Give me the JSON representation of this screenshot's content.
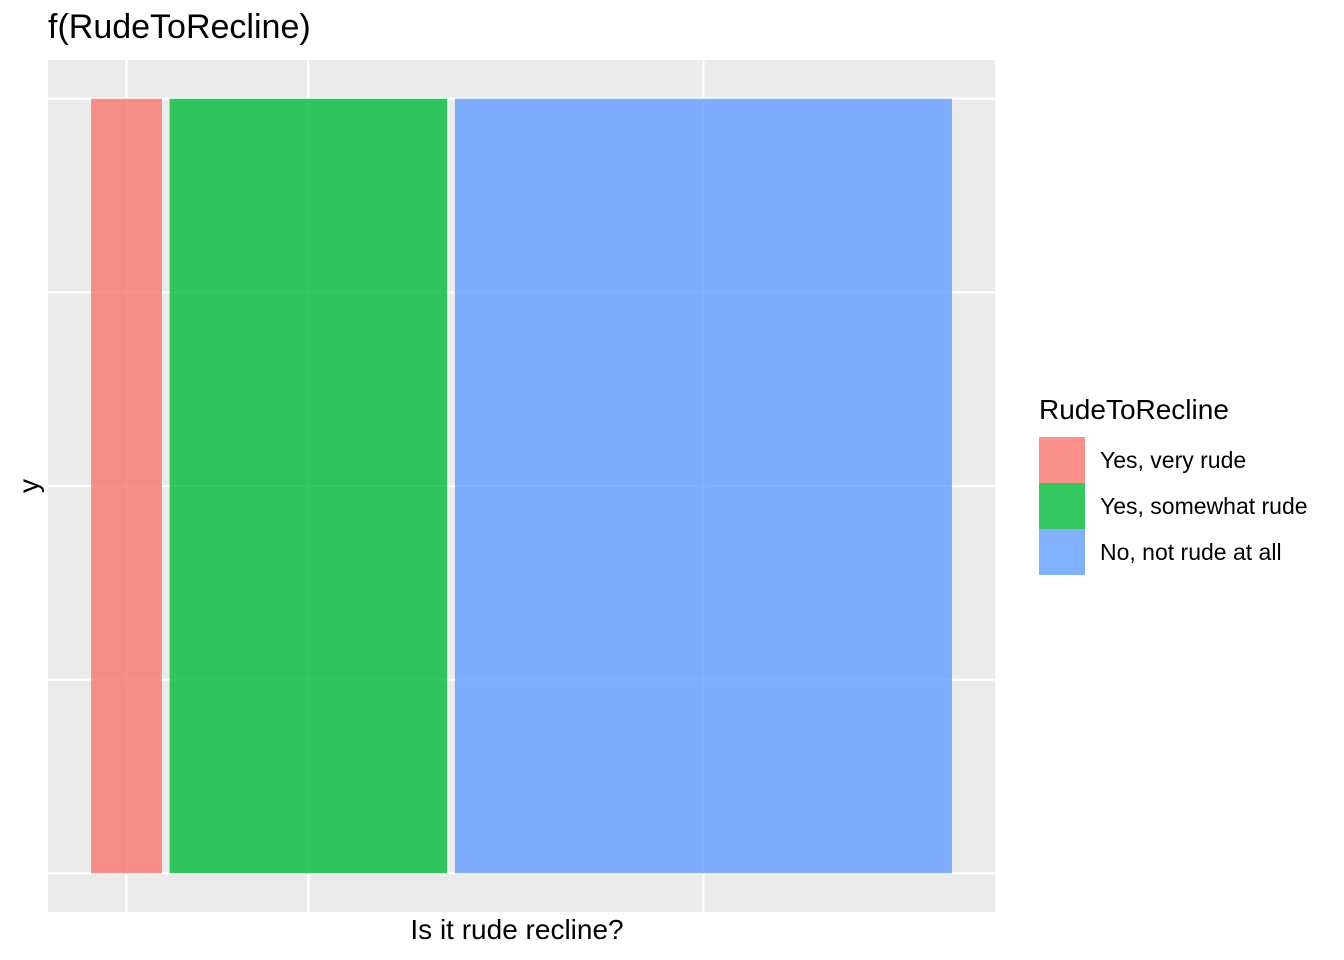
{
  "chart_data": {
    "type": "bar",
    "title": "f(RudeToRecline)",
    "xlabel": "Is it rude recline?",
    "ylabel": "y",
    "categories": [
      "Yes, very rude",
      "Yes, somewhat rude",
      "No, not rude at all"
    ],
    "proportions": [
      0.0825,
      0.3231,
      0.5788
    ],
    "values": [
      1,
      1,
      1
    ],
    "ylim": [
      0,
      1
    ],
    "grid": true,
    "panel_background": "#EBEBEB",
    "legend": {
      "title": "RudeToRecline",
      "position": "right",
      "entries": [
        "Yes, very rude",
        "Yes, somewhat rude",
        "No, not rude at all"
      ]
    },
    "colors": [
      "#F8766D",
      "#00BA38",
      "#619CFF"
    ]
  }
}
